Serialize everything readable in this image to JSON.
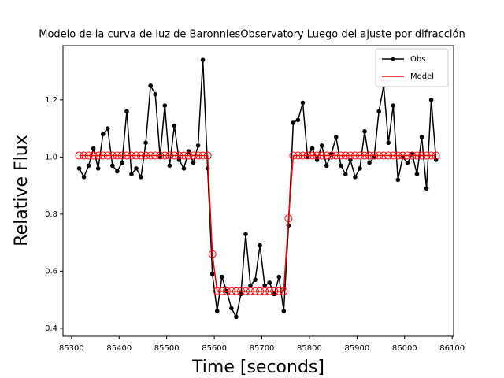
{
  "chart_data": {
    "type": "line",
    "title": "Modelo de la curva de luz de BaronniesObservatory Luego del ajuste por difracción",
    "x_label": "Time [seconds]",
    "y_label": "Relative Flux",
    "x": [
      85316,
      85326,
      85336,
      85346,
      85356,
      85366,
      85376,
      85386,
      85396,
      85406,
      85416,
      85426,
      85436,
      85446,
      85456,
      85466,
      85476,
      85486,
      85496,
      85506,
      85516,
      85526,
      85536,
      85546,
      85556,
      85566,
      85576,
      85586,
      85596,
      85606,
      85616,
      85626,
      85636,
      85646,
      85656,
      85666,
      85676,
      85686,
      85696,
      85706,
      85716,
      85726,
      85736,
      85746,
      85756,
      85766,
      85776,
      85786,
      85796,
      85806,
      85816,
      85826,
      85836,
      85846,
      85856,
      85866,
      85876,
      85886,
      85896,
      85906,
      85916,
      85926,
      85936,
      85946,
      85956,
      85966,
      85976,
      85986,
      85996,
      86006,
      86016,
      86026,
      86036,
      86046,
      86056,
      86066
    ],
    "series": [
      {
        "name": "Obs.",
        "color": "#000000",
        "marker": "dot",
        "values": [
          0.96,
          0.93,
          0.97,
          1.03,
          0.96,
          1.08,
          1.1,
          0.97,
          0.95,
          0.98,
          1.16,
          0.94,
          0.96,
          0.93,
          1.05,
          1.25,
          1.22,
          1.0,
          1.18,
          0.97,
          1.11,
          0.99,
          0.96,
          1.02,
          0.98,
          1.04,
          1.34,
          0.96,
          0.59,
          0.46,
          0.58,
          0.53,
          0.47,
          0.44,
          0.52,
          0.73,
          0.55,
          0.57,
          0.69,
          0.55,
          0.56,
          0.52,
          0.58,
          0.46,
          0.76,
          1.12,
          1.13,
          1.19,
          1.0,
          1.03,
          0.99,
          1.04,
          0.97,
          1.01,
          1.07,
          0.97,
          0.94,
          0.99,
          0.93,
          0.96,
          1.09,
          0.98,
          1.0,
          1.16,
          1.25,
          1.05,
          1.18,
          0.92,
          1.0,
          0.98,
          1.01,
          0.94,
          1.07,
          0.89,
          1.2,
          0.99
        ]
      },
      {
        "name": "Model",
        "color": "#ff0000",
        "marker": "open-circle",
        "values": [
          1.005,
          1.005,
          1.005,
          1.005,
          1.005,
          1.005,
          1.005,
          1.005,
          1.005,
          1.005,
          1.005,
          1.005,
          1.005,
          1.005,
          1.005,
          1.005,
          1.005,
          1.005,
          1.005,
          1.005,
          1.005,
          1.005,
          1.005,
          1.005,
          1.005,
          1.005,
          1.005,
          1.005,
          0.66,
          0.53,
          0.53,
          0.53,
          0.53,
          0.53,
          0.53,
          0.53,
          0.53,
          0.53,
          0.53,
          0.53,
          0.53,
          0.53,
          0.53,
          0.53,
          0.785,
          1.005,
          1.005,
          1.005,
          1.005,
          1.005,
          1.005,
          1.005,
          1.005,
          1.005,
          1.005,
          1.005,
          1.005,
          1.005,
          1.005,
          1.005,
          1.005,
          1.005,
          1.005,
          1.005,
          1.005,
          1.005,
          1.005,
          1.005,
          1.005,
          1.005,
          1.005,
          1.005,
          1.005,
          1.005,
          1.005,
          1.005
        ]
      }
    ],
    "xlim": [
      85282,
      86103
    ],
    "ylim": [
      0.372,
      1.39
    ],
    "xticks": [
      85300,
      85400,
      85500,
      85600,
      85700,
      85800,
      85900,
      86000,
      86100
    ],
    "yticks": [
      {
        "value": 0.4,
        "label": "0.4"
      },
      {
        "value": 0.6,
        "label": "0.6"
      },
      {
        "value": 0.8,
        "label": "0.8"
      },
      {
        "value": 1.0,
        "label": "1.0"
      },
      {
        "value": 1.2,
        "label": "1.2"
      }
    ],
    "legend": "upper right"
  }
}
